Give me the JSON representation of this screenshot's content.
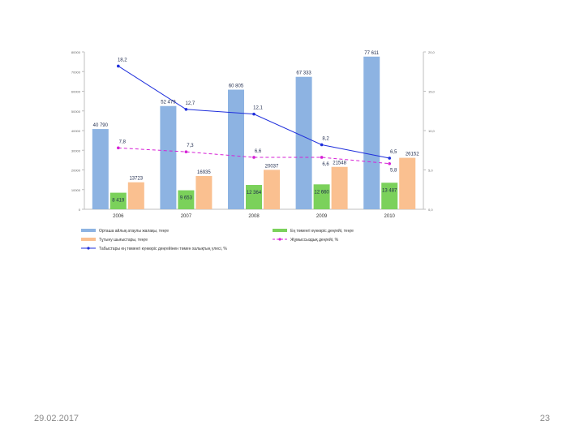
{
  "chart_data": {
    "type": "bar",
    "categories": [
      "2006",
      "2007",
      "2008",
      "2009",
      "2010"
    ],
    "y_left": {
      "ticks": [
        "0",
        "10000",
        "20000",
        "30000",
        "40000",
        "50000",
        "60000",
        "70000",
        "80000"
      ],
      "range": [
        0,
        80000
      ]
    },
    "y_right": {
      "ticks": [
        "0,0",
        "5,0",
        "10,0",
        "15,0",
        "20,0"
      ],
      "range": [
        0,
        20
      ]
    },
    "bar_series": [
      {
        "name": "Орташа айлық атаулы жалақы, теңге",
        "color": "#8db3e2",
        "values": [
          40790,
          52479,
          60805,
          67333,
          77611
        ],
        "labels": [
          "40 790",
          "52 479",
          "60 805",
          "67 333",
          "77 611"
        ]
      },
      {
        "name": "Ең төменгі күнкөріс деңгейі, теңге",
        "color": "#7bd15b",
        "values": [
          8419,
          9653,
          12364,
          12660,
          13487
        ],
        "labels": [
          "8 419",
          "9 653",
          "12 364",
          "12 660",
          "13 487"
        ]
      },
      {
        "name": "Тұтыну шығыстары, теңге",
        "color": "#fac090",
        "values": [
          13723,
          16935,
          20037,
          21548,
          26152
        ],
        "labels": [
          "13723",
          "16935",
          "20037",
          "21548",
          "26152"
        ]
      }
    ],
    "line_series": [
      {
        "name": "Табыстары ең төменгі күнкөріс деңгейінен төмен халықтың үлесі, %",
        "color": "#1f2fdc",
        "style": "solid",
        "values": [
          18.2,
          12.7,
          12.1,
          8.2,
          6.5
        ],
        "labels": [
          "18,2",
          "12,7",
          "12,1",
          "8,2",
          "6,5"
        ]
      },
      {
        "name": "Жұмыссыздық деңгейі, %",
        "color": "#d621d6",
        "style": "dashed",
        "values": [
          7.8,
          7.3,
          6.6,
          6.6,
          5.8
        ],
        "labels": [
          "7,8",
          "7,3",
          "6,6",
          "6,6",
          "5,8"
        ]
      }
    ],
    "legend_position": "bottom",
    "grid": false
  },
  "footer": {
    "date": "29.02.2017",
    "page": "23"
  }
}
